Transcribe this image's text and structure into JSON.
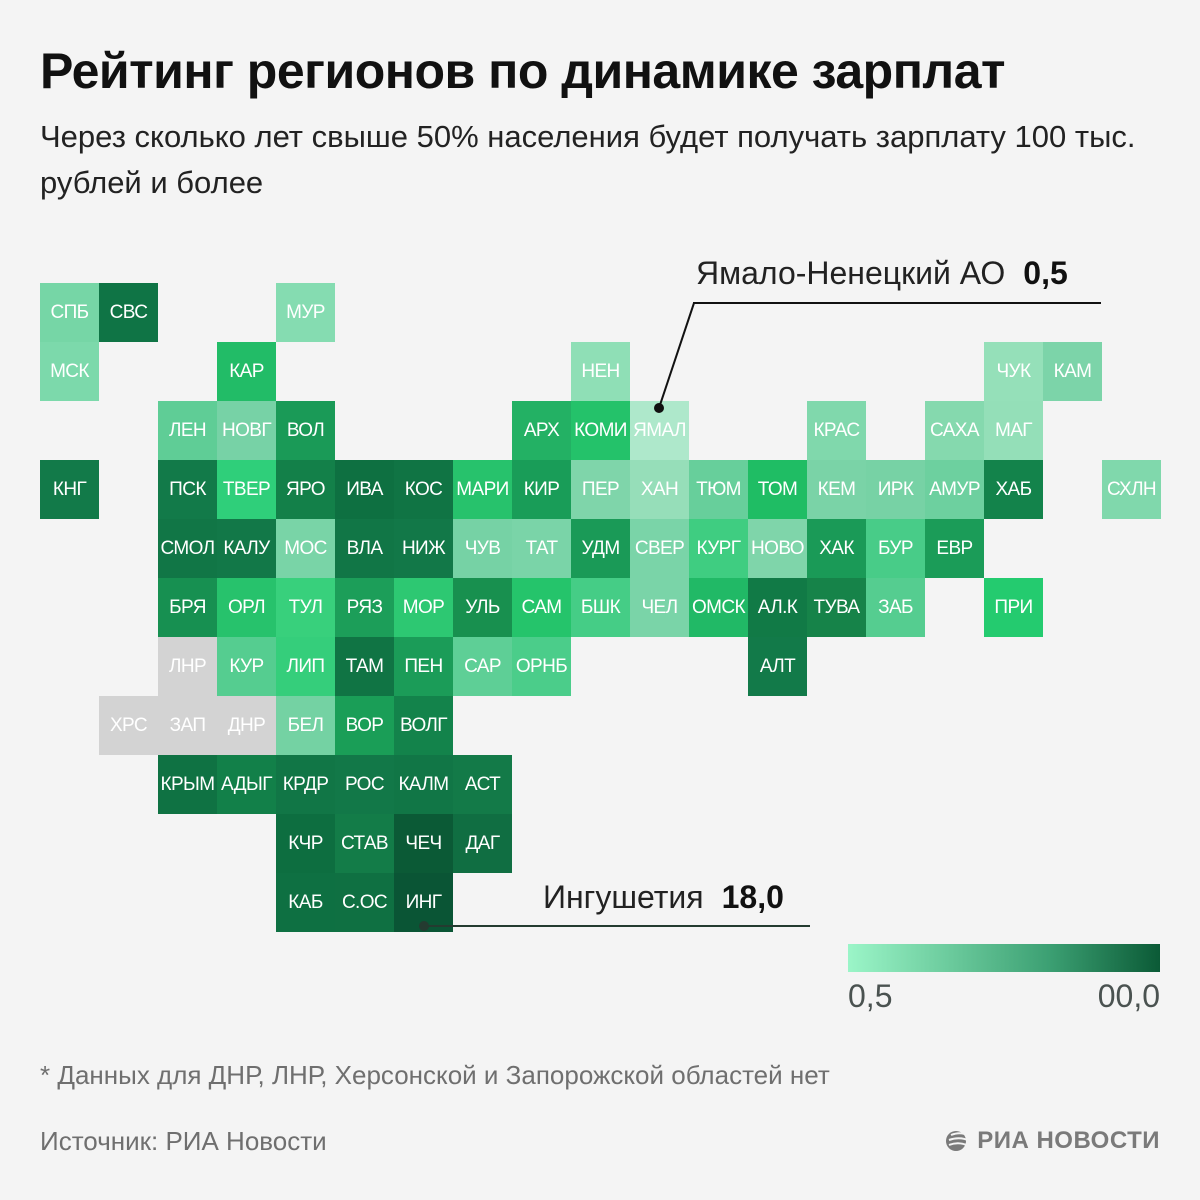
{
  "header": {
    "title": "Рейтинг регионов по динамике зарплат",
    "subtitle": "Через сколько лет свыше 50% населения будет получать зарплату 100 тыс. рублей и более"
  },
  "chart_data": {
    "type": "heatmap",
    "title": "Рейтинг регионов по динамике зарплат",
    "subtitle": "Через сколько лет свыше 50% населения будет получать зарплату 100 тыс. рублей и более",
    "value_unit": "лет",
    "color_scale": {
      "min_label": "0,5",
      "max_label": "00,0",
      "min_color": "#9bf5c8",
      "max_color": "#0b5a36",
      "no_data_color": "#d3d3d3"
    },
    "annotations": [
      {
        "region": "Ямало-Ненецкий АО",
        "code": "ЯМАЛ",
        "value": 0.5,
        "value_label": "0,5"
      },
      {
        "region": "Ингушетия",
        "code": "ИНГ",
        "value": 18.0,
        "value_label": "18,0"
      }
    ],
    "tiles": [
      {
        "code": "СПБ",
        "row": 0,
        "col": 0,
        "color": "#76d6a6"
      },
      {
        "code": "СВС",
        "row": 0,
        "col": 1,
        "color": "#0f7445"
      },
      {
        "code": "МУР",
        "row": 0,
        "col": 4,
        "color": "#85dcb1"
      },
      {
        "code": "МСК",
        "row": 1,
        "col": 0,
        "color": "#7cd9ab"
      },
      {
        "code": "КАР",
        "row": 1,
        "col": 3,
        "color": "#22bc67"
      },
      {
        "code": "НЕН",
        "row": 1,
        "col": 9,
        "color": "#8fdfb6"
      },
      {
        "code": "ЧУК",
        "row": 1,
        "col": 16,
        "color": "#95e0b9"
      },
      {
        "code": "КАМ",
        "row": 1,
        "col": 17,
        "color": "#7cd4a9"
      },
      {
        "code": "ЛЕН",
        "row": 2,
        "col": 2,
        "color": "#5fcd96"
      },
      {
        "code": "НОВГ",
        "row": 2,
        "col": 3,
        "color": "#77d2a6"
      },
      {
        "code": "ВОЛ",
        "row": 2,
        "col": 4,
        "color": "#1a9a57"
      },
      {
        "code": "АРХ",
        "row": 2,
        "col": 8,
        "color": "#23b164"
      },
      {
        "code": "КОМИ",
        "row": 2,
        "col": 9,
        "color": "#24c26a"
      },
      {
        "code": "ЯМАЛ",
        "row": 2,
        "col": 10,
        "color": "#aee8cb"
      },
      {
        "code": "КРАС",
        "row": 2,
        "col": 13,
        "color": "#80d8ac"
      },
      {
        "code": "САХА",
        "row": 2,
        "col": 15,
        "color": "#85d9ae"
      },
      {
        "code": "МАГ",
        "row": 2,
        "col": 16,
        "color": "#94dfb8"
      },
      {
        "code": "КНГ",
        "row": 3,
        "col": 0,
        "color": "#127a49"
      },
      {
        "code": "ПСК",
        "row": 3,
        "col": 2,
        "color": "#127a49"
      },
      {
        "code": "ТВЕР",
        "row": 3,
        "col": 3,
        "color": "#2fcf7a"
      },
      {
        "code": "ЯРО",
        "row": 3,
        "col": 4,
        "color": "#138049"
      },
      {
        "code": "ИВА",
        "row": 3,
        "col": 5,
        "color": "#0e7041"
      },
      {
        "code": "КОС",
        "row": 3,
        "col": 6,
        "color": "#107444"
      },
      {
        "code": "МАРИ",
        "row": 3,
        "col": 7,
        "color": "#27c26c"
      },
      {
        "code": "КИР",
        "row": 3,
        "col": 8,
        "color": "#199d58"
      },
      {
        "code": "ПЕР",
        "row": 3,
        "col": 9,
        "color": "#7fd5aa"
      },
      {
        "code": "ХАН",
        "row": 3,
        "col": 10,
        "color": "#96deb9"
      },
      {
        "code": "ТЮМ",
        "row": 3,
        "col": 11,
        "color": "#67cf9b"
      },
      {
        "code": "ТОМ",
        "row": 3,
        "col": 12,
        "color": "#1fbd64"
      },
      {
        "code": "КЕМ",
        "row": 3,
        "col": 13,
        "color": "#7ad3a7"
      },
      {
        "code": "ИРК",
        "row": 3,
        "col": 14,
        "color": "#77d2a5"
      },
      {
        "code": "АМУР",
        "row": 3,
        "col": 15,
        "color": "#6dd09f"
      },
      {
        "code": "ХАБ",
        "row": 3,
        "col": 16,
        "color": "#13834b"
      },
      {
        "code": "СХЛН",
        "row": 3,
        "col": 18,
        "color": "#80d8ac"
      },
      {
        "code": "СМОЛ",
        "row": 4,
        "col": 2,
        "color": "#117646"
      },
      {
        "code": "КАЛУ",
        "row": 4,
        "col": 3,
        "color": "#127848"
      },
      {
        "code": "МОС",
        "row": 4,
        "col": 4,
        "color": "#79d4a7"
      },
      {
        "code": "ВЛА",
        "row": 4,
        "col": 5,
        "color": "#117646"
      },
      {
        "code": "НИЖ",
        "row": 4,
        "col": 6,
        "color": "#127848"
      },
      {
        "code": "ЧУВ",
        "row": 4,
        "col": 7,
        "color": "#76d2a5"
      },
      {
        "code": "ТАТ",
        "row": 4,
        "col": 8,
        "color": "#7ad4a8"
      },
      {
        "code": "УДМ",
        "row": 4,
        "col": 9,
        "color": "#1a9a57"
      },
      {
        "code": "СВЕР",
        "row": 4,
        "col": 10,
        "color": "#7ad4a8"
      },
      {
        "code": "КУРГ",
        "row": 4,
        "col": 11,
        "color": "#3fcd81"
      },
      {
        "code": "НОВО",
        "row": 4,
        "col": 12,
        "color": "#7fd5aa"
      },
      {
        "code": "ХАК",
        "row": 4,
        "col": 13,
        "color": "#1a9a57"
      },
      {
        "code": "БУР",
        "row": 4,
        "col": 14,
        "color": "#48cc88"
      },
      {
        "code": "ЕВР",
        "row": 4,
        "col": 15,
        "color": "#1b9c58"
      },
      {
        "code": "БРЯ",
        "row": 5,
        "col": 2,
        "color": "#179051"
      },
      {
        "code": "ОРЛ",
        "row": 5,
        "col": 3,
        "color": "#27c26c"
      },
      {
        "code": "ТУЛ",
        "row": 5,
        "col": 4,
        "color": "#38d07c"
      },
      {
        "code": "РЯЗ",
        "row": 5,
        "col": 5,
        "color": "#1c9e59"
      },
      {
        "code": "МОР",
        "row": 5,
        "col": 6,
        "color": "#2dc872"
      },
      {
        "code": "УЛЬ",
        "row": 5,
        "col": 7,
        "color": "#18904f"
      },
      {
        "code": "САМ",
        "row": 5,
        "col": 8,
        "color": "#25c46b"
      },
      {
        "code": "БШК",
        "row": 5,
        "col": 9,
        "color": "#45cd86"
      },
      {
        "code": "ЧЕЛ",
        "row": 5,
        "col": 10,
        "color": "#7ad4a8"
      },
      {
        "code": "ОМСК",
        "row": 5,
        "col": 11,
        "color": "#21b966"
      },
      {
        "code": "АЛ.К",
        "row": 5,
        "col": 12,
        "color": "#117a46"
      },
      {
        "code": "ТУВА",
        "row": 5,
        "col": 13,
        "color": "#168349"
      },
      {
        "code": "ЗАБ",
        "row": 5,
        "col": 14,
        "color": "#55cd90"
      },
      {
        "code": "ПРИ",
        "row": 5,
        "col": 16,
        "color": "#24cb6f"
      },
      {
        "code": "ЛНР",
        "row": 6,
        "col": 2,
        "color": "#d3d3d3",
        "no_data": true
      },
      {
        "code": "КУР",
        "row": 6,
        "col": 3,
        "color": "#55cd90"
      },
      {
        "code": "ЛИП",
        "row": 6,
        "col": 4,
        "color": "#35ce7b"
      },
      {
        "code": "ТАМ",
        "row": 6,
        "col": 5,
        "color": "#107444"
      },
      {
        "code": "ПЕН",
        "row": 6,
        "col": 6,
        "color": "#1b9c58"
      },
      {
        "code": "САР",
        "row": 6,
        "col": 7,
        "color": "#5ecf96"
      },
      {
        "code": "ОРНБ",
        "row": 6,
        "col": 8,
        "color": "#4bcd8a"
      },
      {
        "code": "АЛТ",
        "row": 6,
        "col": 12,
        "color": "#127a49"
      },
      {
        "code": "ХРС",
        "row": 7,
        "col": 1,
        "color": "#d3d3d3",
        "no_data": true
      },
      {
        "code": "ЗАП",
        "row": 7,
        "col": 2,
        "color": "#d3d3d3",
        "no_data": true
      },
      {
        "code": "ДНР",
        "row": 7,
        "col": 3,
        "color": "#d3d3d3",
        "no_data": true
      },
      {
        "code": "БЕЛ",
        "row": 7,
        "col": 4,
        "color": "#74d2a3"
      },
      {
        "code": "ВОР",
        "row": 7,
        "col": 5,
        "color": "#1a9e57"
      },
      {
        "code": "ВОЛГ",
        "row": 7,
        "col": 6,
        "color": "#13834b"
      },
      {
        "code": "КРЫМ",
        "row": 8,
        "col": 2,
        "color": "#0f7243"
      },
      {
        "code": "АДЫГ",
        "row": 8,
        "col": 3,
        "color": "#128049"
      },
      {
        "code": "КРДР",
        "row": 8,
        "col": 4,
        "color": "#117646"
      },
      {
        "code": "РОС",
        "row": 8,
        "col": 5,
        "color": "#127848"
      },
      {
        "code": "КАЛМ",
        "row": 8,
        "col": 6,
        "color": "#117646"
      },
      {
        "code": "АСТ",
        "row": 8,
        "col": 7,
        "color": "#137a48"
      },
      {
        "code": "КЧР",
        "row": 9,
        "col": 4,
        "color": "#0d6e40"
      },
      {
        "code": "СТАВ",
        "row": 9,
        "col": 5,
        "color": "#137c48"
      },
      {
        "code": "ЧЕЧ",
        "row": 9,
        "col": 6,
        "color": "#0b5a36"
      },
      {
        "code": "ДАГ",
        "row": 9,
        "col": 7,
        "color": "#106e42"
      },
      {
        "code": "КАБ",
        "row": 10,
        "col": 4,
        "color": "#0e7042"
      },
      {
        "code": "С.ОС",
        "row": 10,
        "col": 5,
        "color": "#0f7042"
      },
      {
        "code": "ИНГ",
        "row": 10,
        "col": 6,
        "color": "#0a5535"
      }
    ]
  },
  "legend": {
    "min_label": "0,5",
    "max_label": "00,0"
  },
  "callouts": {
    "top": {
      "name": "Ямало-Ненецкий АО",
      "value": "0,5"
    },
    "bottom": {
      "name": "Ингушетия",
      "value": "18,0"
    }
  },
  "footer": {
    "footnote": "* Данных для ДНР, ЛНР, Херсонской и Запорожской областей нет",
    "source": "Источник: РИА Новости",
    "logo_text": "РИА НОВОСТИ"
  }
}
